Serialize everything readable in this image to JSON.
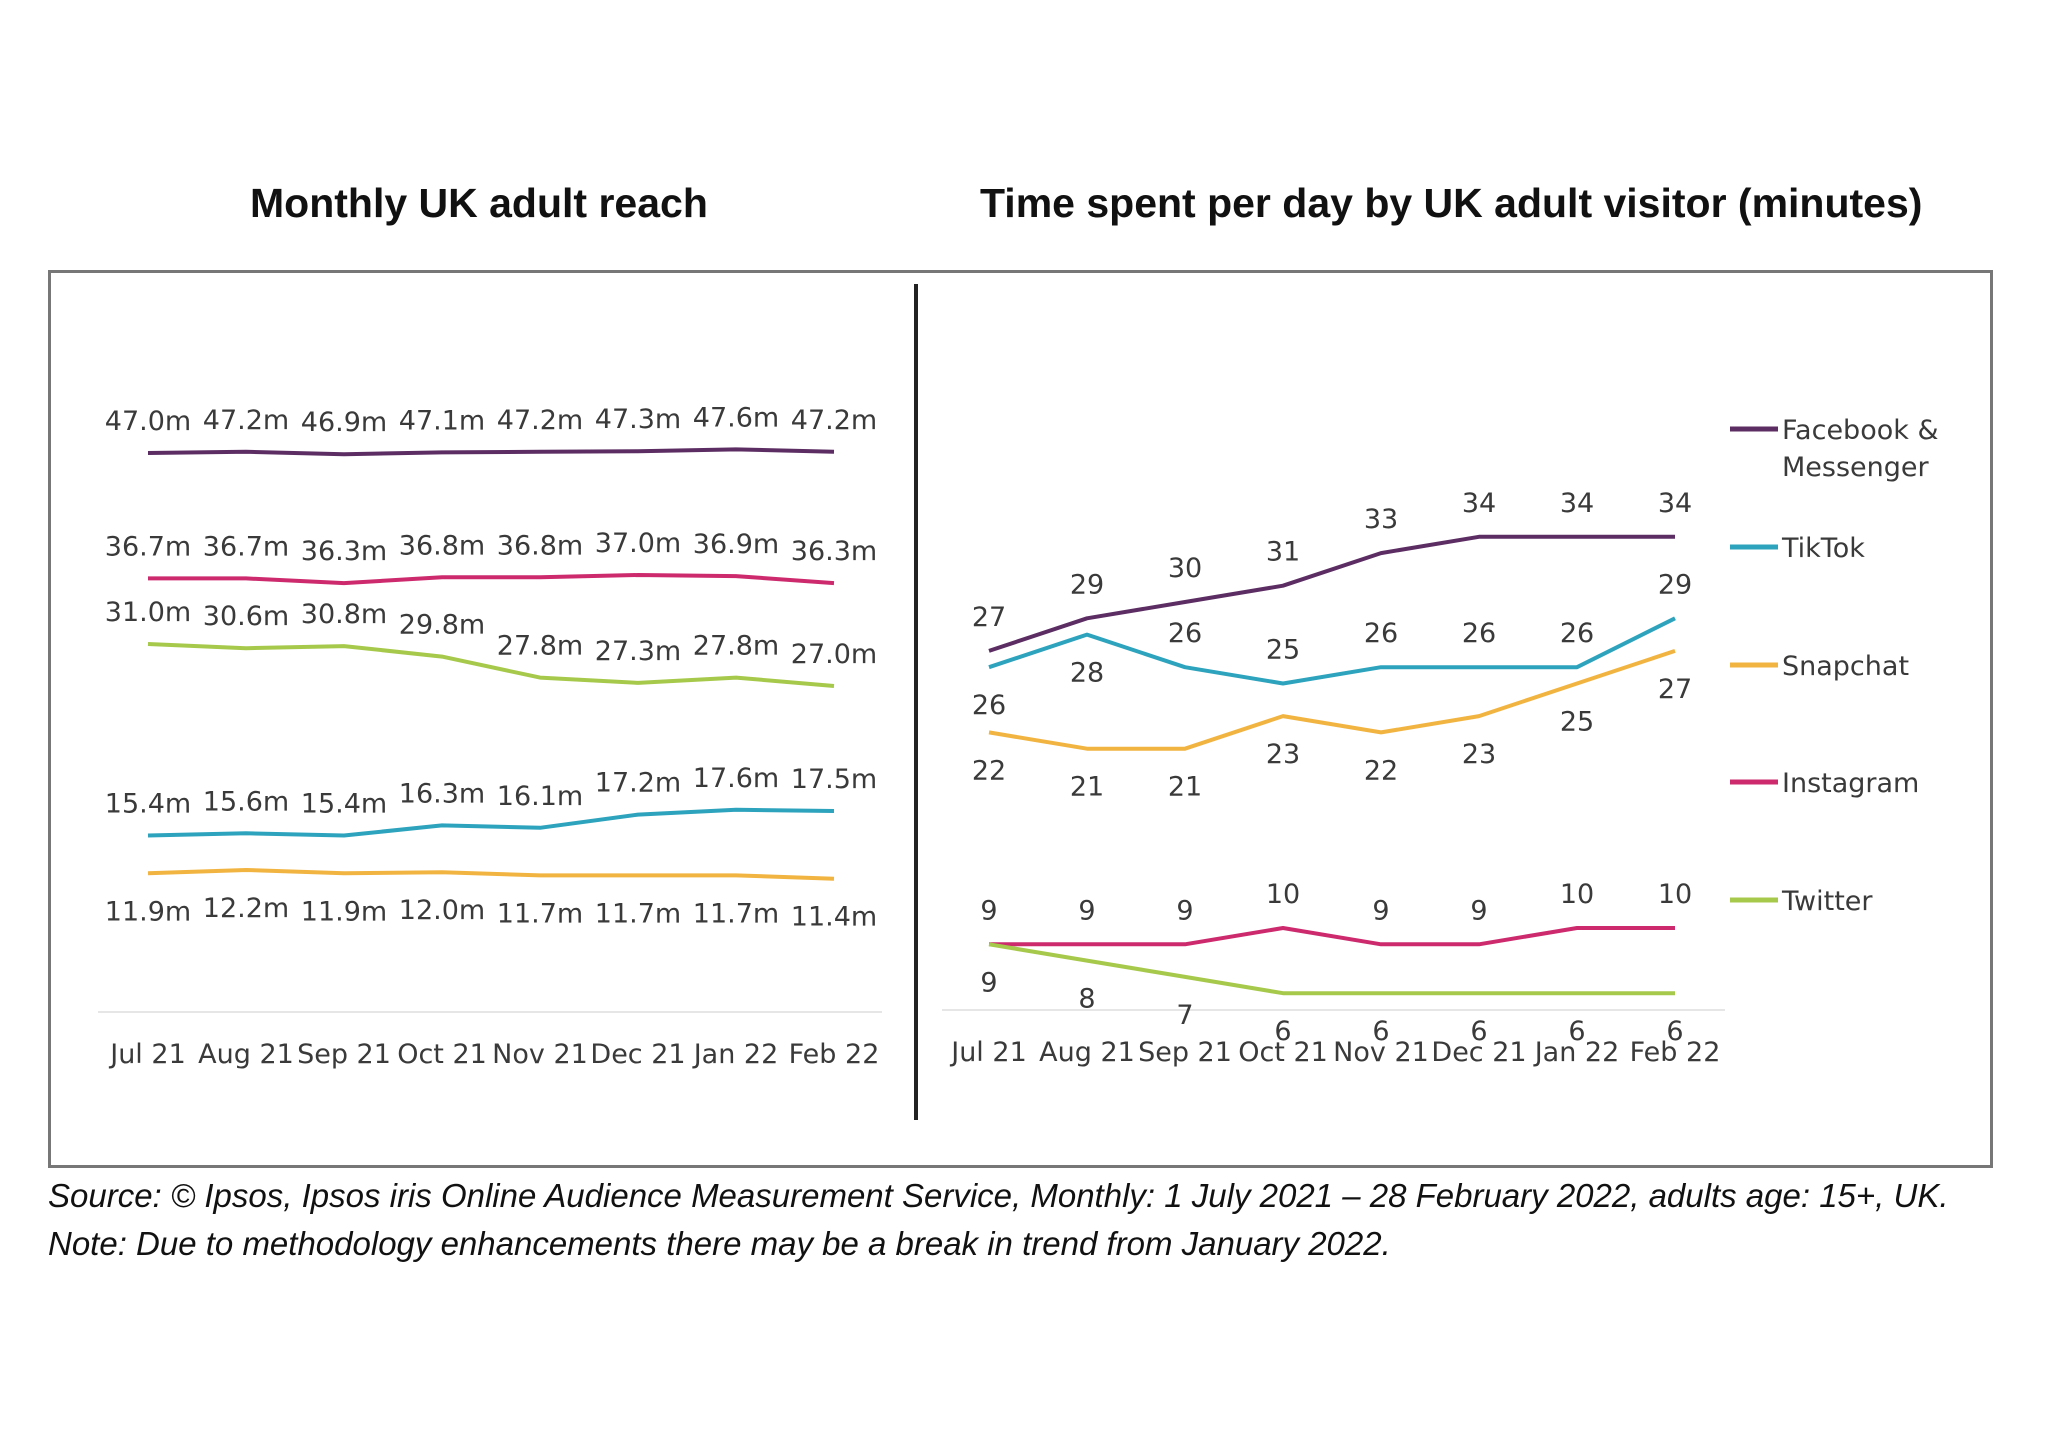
{
  "colors": {
    "facebook": "#5c2d63",
    "tiktok": "#2da3bd",
    "snapchat": "#f2b441",
    "instagram": "#cc2a6d",
    "twitter": "#a7c94b"
  },
  "source_note": "Source: © Ipsos, Ipsos iris Online Audience Measurement Service, Monthly: 1 July 2021 – 28 February 2022, adults age: 15+, UK. Note: Due to methodology enhancements there may be a break in trend from January 2022.",
  "chart_data": [
    {
      "type": "line",
      "title": "Monthly UK adult reach",
      "xlabel": "",
      "ylabel": "",
      "unit": "m",
      "grid": false,
      "categories": [
        "Jul 21",
        "Aug 21",
        "Sep 21",
        "Oct 21",
        "Nov 21",
        "Dec 21",
        "Jan 22",
        "Feb 22"
      ],
      "series": [
        {
          "name": "Facebook & Messenger",
          "color_key": "facebook",
          "label_pos": "above",
          "values": [
            47.0,
            47.2,
            46.9,
            47.1,
            47.2,
            47.3,
            47.6,
            47.2
          ],
          "labels": [
            "47.0m",
            "47.2m",
            "46.9m",
            "47.1m",
            "47.2m",
            "47.3m",
            "47.6m",
            "47.2m"
          ]
        },
        {
          "name": "Instagram",
          "color_key": "instagram",
          "label_pos": "above",
          "values": [
            36.7,
            36.7,
            36.3,
            36.8,
            36.8,
            37.0,
            36.9,
            36.3
          ],
          "labels": [
            "36.7m",
            "36.7m",
            "36.3m",
            "36.8m",
            "36.8m",
            "37.0m",
            "36.9m",
            "36.3m"
          ]
        },
        {
          "name": "Twitter",
          "color_key": "twitter",
          "label_pos": "above",
          "values": [
            31.0,
            30.6,
            30.8,
            29.8,
            27.8,
            27.3,
            27.8,
            27.0
          ],
          "labels": [
            "31.0m",
            "30.6m",
            "30.8m",
            "29.8m",
            "27.8m",
            "27.3m",
            "27.8m",
            "27.0m"
          ]
        },
        {
          "name": "TikTok",
          "color_key": "tiktok",
          "label_pos": "above",
          "values": [
            15.4,
            15.6,
            15.4,
            16.3,
            16.1,
            17.2,
            17.6,
            17.5
          ],
          "labels": [
            "15.4m",
            "15.6m",
            "15.4m",
            "16.3m",
            "16.1m",
            "17.2m",
            "17.6m",
            "17.5m"
          ]
        },
        {
          "name": "Snapchat",
          "color_key": "snapchat",
          "label_pos": "below",
          "values": [
            11.9,
            12.2,
            11.9,
            12.0,
            11.7,
            11.7,
            11.7,
            11.4
          ],
          "labels": [
            "11.9m",
            "12.2m",
            "11.9m",
            "12.0m",
            "11.7m",
            "11.7m",
            "11.7m",
            "11.4m"
          ]
        }
      ]
    },
    {
      "type": "line",
      "title": "Time spent per day by UK adult visitor (minutes)",
      "xlabel": "",
      "ylabel": "minutes",
      "grid": false,
      "legend": "right",
      "categories": [
        "Jul 21",
        "Aug 21",
        "Sep 21",
        "Oct 21",
        "Nov 21",
        "Dec 21",
        "Jan 22",
        "Feb 22"
      ],
      "series": [
        {
          "name": "Facebook & Messenger",
          "legend_lines": [
            "Facebook &",
            "Messenger"
          ],
          "color_key": "facebook",
          "values": [
            27,
            29,
            30,
            31,
            33,
            34,
            34,
            34
          ],
          "label_pos": [
            "above",
            "above",
            "above",
            "above",
            "above",
            "above",
            "above",
            "above"
          ]
        },
        {
          "name": "TikTok",
          "legend_lines": [
            "TikTok"
          ],
          "color_key": "tiktok",
          "values": [
            26,
            28,
            26,
            25,
            26,
            26,
            26,
            29
          ],
          "label_pos": [
            "below",
            "below",
            "above",
            "above",
            "above",
            "above",
            "above",
            "above"
          ]
        },
        {
          "name": "Snapchat",
          "legend_lines": [
            "Snapchat"
          ],
          "color_key": "snapchat",
          "values": [
            22,
            21,
            21,
            23,
            22,
            23,
            25,
            27
          ],
          "label_pos": [
            "below",
            "below",
            "below",
            "below",
            "below",
            "below",
            "below",
            "below"
          ]
        },
        {
          "name": "Instagram",
          "legend_lines": [
            "Instagram"
          ],
          "color_key": "instagram",
          "values": [
            9,
            9,
            9,
            10,
            9,
            9,
            10,
            10
          ],
          "label_pos": [
            "above",
            "above",
            "above",
            "above",
            "above",
            "above",
            "above",
            "above"
          ]
        },
        {
          "name": "Twitter",
          "legend_lines": [
            "Twitter"
          ],
          "color_key": "twitter",
          "values": [
            9,
            8,
            7,
            6,
            6,
            6,
            6,
            6
          ],
          "label_pos": [
            "below",
            "below",
            "below",
            "below",
            "below",
            "below",
            "below",
            "below"
          ]
        }
      ]
    }
  ]
}
